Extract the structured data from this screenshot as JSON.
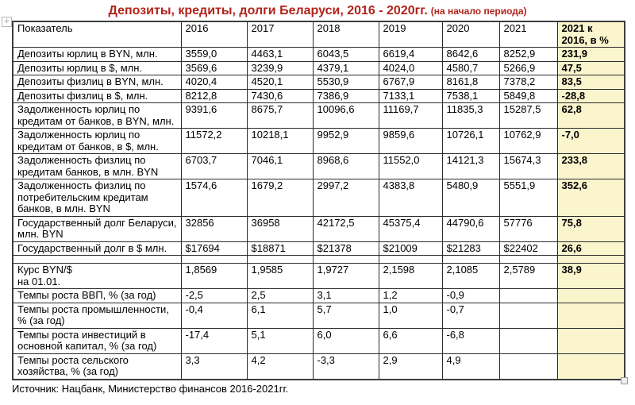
{
  "title": {
    "main": "Депозиты, кредиты, долги Беларуси, 2016 - 2020гг.",
    "suffix": "(на начало периода)"
  },
  "colors": {
    "title_red": "#b2231a",
    "accent_red": "#9e2d24",
    "highlight_yellow": "#fbf5ce"
  },
  "icons": {
    "table_handle": "+"
  },
  "table": {
    "header": {
      "indicator": "Показатель",
      "years": [
        "2016",
        "2017",
        "2018",
        "2019",
        "2020",
        "2021"
      ],
      "ratio": "2021 к\n2016, в %"
    },
    "rows": [
      {
        "label": "Депозиты юрлиц в BYN, млн.",
        "values": [
          "3559,0",
          "4463,1",
          "6043,5",
          "6619,4",
          "8642,6",
          "8252,9"
        ],
        "ratio": "231,9"
      },
      {
        "label": "Депозиты юрлиц в $, млн.",
        "values": [
          "3569,6",
          "3239,9",
          "4379,1",
          "4024,0",
          "4580,7",
          "5266,9"
        ],
        "ratio": "47,5"
      },
      {
        "label": "Депозиты физлиц в BYN, млн.",
        "values": [
          "4020,4",
          "4520,1",
          "5530,9",
          "6767,9",
          "8161,8",
          "7378,2"
        ],
        "ratio": "83,5"
      },
      {
        "label": "Депозиты физлиц в $, млн.",
        "values": [
          "8212,8",
          "7430,6",
          "7386,9",
          "7133,1",
          "7538,1",
          "5849,8"
        ],
        "ratio": "-28,8"
      },
      {
        "label": "Задолженность юрлиц по кредитам от банков, в BYN, млн.",
        "values": [
          "9391,6",
          "8675,7",
          "10096,6",
          "11169,7",
          "11835,3",
          "15287,5"
        ],
        "ratio": "62,8"
      },
      {
        "label": "Задолженность юрлиц по кредитам от банков, в $, млн.",
        "values": [
          "11572,2",
          "10218,1",
          "9952,9",
          "9859,6",
          "10726,1",
          "10762,9"
        ],
        "ratio": "-7,0"
      },
      {
        "label": "Задолженность физлиц по кредитам банков, в млн. BYN",
        "values": [
          "6703,7",
          "7046,1",
          "8968,6",
          "11552,0",
          "14121,3",
          "15674,3"
        ],
        "ratio": "233,8"
      },
      {
        "label": "Задолженность физлиц по потребительским кредитам банков, в млн. BYN",
        "values": [
          "1574,6",
          "1679,2",
          "2997,2",
          "4383,8",
          "5480,9",
          "5551,9"
        ],
        "ratio": "352,6"
      },
      {
        "label": "Государственный долг Беларуси, млн. BYN",
        "values": [
          "32856",
          "36958",
          "42172,5",
          "45375,4",
          "44790,6",
          "57776"
        ],
        "ratio": "75,8"
      },
      {
        "label": "Государственный долг в $ млн.",
        "values": [
          "$17694",
          "$18871",
          "$21378",
          "$21009",
          "$21283",
          "$22402"
        ],
        "ratio": "26,6"
      },
      {
        "kind": "spacer",
        "label": "",
        "values": [
          "",
          "",
          "",
          "",
          "",
          ""
        ],
        "ratio": ""
      },
      {
        "label": "Курс BYN/$\nна 01.01.",
        "values": [
          "1,8569",
          "1,9585",
          "1,9727",
          "2,1598",
          "2,1085",
          "2,5789"
        ],
        "ratio": "38,9"
      },
      {
        "label": "Темпы роста ВВП, % (за год)",
        "values": [
          "-2,5",
          "2,5",
          "3,1",
          "1,2",
          "-0,9",
          ""
        ],
        "ratio": ""
      },
      {
        "label": "Темпы роста промышленности, % (за год)",
        "values": [
          "-0,4",
          "6,1",
          "5,7",
          "1,0",
          "-0,7",
          ""
        ],
        "ratio": ""
      },
      {
        "label": "Темпы роста инвестиций в основной капитал, % (за год)",
        "values": [
          "-17,4",
          "5,1",
          "6,0",
          "6,6",
          "-6,8",
          ""
        ],
        "ratio": ""
      },
      {
        "label": "Темпы роста сельского хозяйства, % (за год)",
        "values": [
          "3,3",
          "4,2",
          "-3,3",
          "2,9",
          "4,9",
          ""
        ],
        "ratio": ""
      }
    ]
  },
  "footer": {
    "source": "Источник: Нацбанк, Министерство финансов 2016-2021гг."
  }
}
